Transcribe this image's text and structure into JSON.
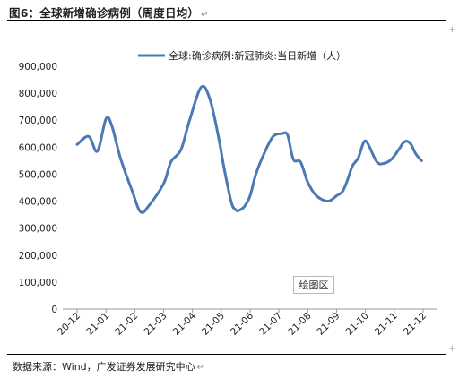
{
  "header": {
    "title": "图6：全球新增确诊病例（周度日均）",
    "return_mark": "↵"
  },
  "footer": {
    "source": "数据来源：Wind，广发证券发展研究中心",
    "return_mark": "↵"
  },
  "badge": {
    "label": "绘图区"
  },
  "chart_data": {
    "type": "line",
    "title": "",
    "xlabel": "",
    "ylabel": "",
    "ylim": [
      0,
      900000
    ],
    "y_ticks": [
      "0",
      "100,000",
      "200,000",
      "300,000",
      "400,000",
      "500,000",
      "600,000",
      "700,000",
      "800,000",
      "900,000"
    ],
    "x_ticks": [
      "20-12",
      "21-01",
      "21-02",
      "21-03",
      "21-04",
      "21-05",
      "21-06",
      "21-07",
      "21-08",
      "21-09",
      "21-10",
      "21-11",
      "21-12"
    ],
    "legend": {
      "position": "top"
    },
    "grid": false,
    "color": "#4a79b3",
    "series": [
      {
        "name": "全球:确诊病例:新冠肺炎:当日新增（人）",
        "x": [
          0.0,
          0.4,
          0.7,
          1.0,
          1.2,
          1.5,
          1.9,
          2.2,
          2.5,
          3.0,
          3.25,
          3.6,
          3.9,
          4.3,
          4.6,
          4.9,
          5.1,
          5.35,
          5.5,
          5.6,
          5.8,
          6.0,
          6.2,
          6.5,
          6.8,
          7.1,
          7.3,
          7.5,
          7.75,
          8.0,
          8.3,
          8.7,
          9.0,
          9.2,
          9.35,
          9.55,
          9.75,
          9.95,
          10.1,
          10.4,
          10.65,
          10.9,
          11.15,
          11.35,
          11.55,
          11.75,
          11.95
        ],
        "y": [
          610000,
          640000,
          585000,
          705000,
          680000,
          560000,
          440000,
          360000,
          385000,
          465000,
          545000,
          590000,
          700000,
          822000,
          780000,
          640000,
          520000,
          395000,
          368000,
          365000,
          380000,
          420000,
          500000,
          580000,
          640000,
          650000,
          645000,
          555000,
          545000,
          470000,
          420000,
          400000,
          420000,
          435000,
          470000,
          530000,
          560000,
          620000,
          610000,
          545000,
          540000,
          555000,
          590000,
          620000,
          615000,
          575000,
          550000
        ]
      }
    ]
  }
}
